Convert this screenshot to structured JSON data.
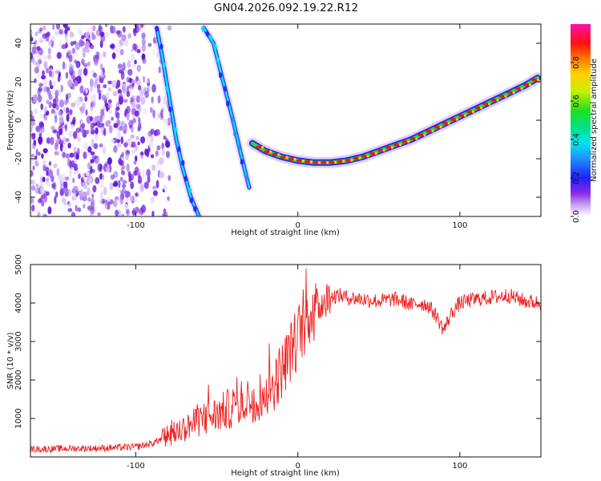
{
  "title": "GN04.2026.092.19.22.R12",
  "chart_data": [
    {
      "type": "heatmap",
      "name": "spectrogram",
      "xlabel": "Height of straight line (km)",
      "ylabel": "Frequency (Hz)",
      "xlim": [
        -165,
        150
      ],
      "ylim": [
        -50,
        50
      ],
      "x_ticks": [
        -100,
        0,
        100
      ],
      "y_ticks": [
        -40,
        -20,
        0,
        20,
        40
      ],
      "colorbar": {
        "label": "Normalized spectral amplitude",
        "range": [
          0,
          1
        ],
        "ticks": [
          0.0,
          0.2,
          0.4,
          0.6,
          0.8
        ],
        "tick_labels": [
          "0.0",
          "0.2",
          "0.4",
          "0.6",
          "0.8"
        ]
      },
      "traces": [
        {
          "name": "main-tone",
          "x": [
            -28,
            -20,
            -10,
            0,
            10,
            20,
            30,
            40,
            50,
            60,
            70,
            80,
            90,
            100,
            110,
            120,
            130,
            140,
            148
          ],
          "y": [
            -12,
            -16,
            -19,
            -21,
            -22,
            -22,
            -21,
            -19,
            -16,
            -13,
            -10,
            -6,
            -2,
            2,
            6,
            10,
            14,
            18,
            22
          ],
          "amplitude": 0.95
        },
        {
          "name": "aliased-trace-1",
          "x": [
            -58,
            -52,
            -46,
            -40,
            -35,
            -30
          ],
          "y": [
            48,
            40,
            20,
            0,
            -18,
            -35
          ],
          "amplitude": 0.35
        },
        {
          "name": "aliased-trace-2",
          "x": [
            -87,
            -83,
            -79,
            -75,
            -71,
            -66,
            -61
          ],
          "y": [
            48,
            30,
            10,
            -10,
            -25,
            -40,
            -50
          ],
          "amplitude": 0.35
        }
      ],
      "noise_region_x": [
        -165,
        -85
      ]
    },
    {
      "type": "line",
      "name": "snr",
      "xlabel": "Height of straight line (km)",
      "ylabel": "SNR (10 * v/v)",
      "xlim": [
        -165,
        150
      ],
      "ylim": [
        0,
        5000
      ],
      "x_ticks": [
        -100,
        0,
        100
      ],
      "y_ticks": [
        1000,
        2000,
        3000,
        4000,
        5000
      ],
      "series": [
        {
          "name": "SNR",
          "color": "#ee2020",
          "x": [
            -165,
            -140,
            -120,
            -100,
            -90,
            -80,
            -70,
            -60,
            -50,
            -40,
            -30,
            -20,
            -15,
            -10,
            -5,
            0,
            3,
            6,
            10,
            15,
            20,
            25,
            30,
            40,
            50,
            60,
            65,
            70,
            75,
            80,
            85,
            90,
            95,
            100,
            110,
            120,
            130,
            140,
            150
          ],
          "y": [
            200,
            220,
            230,
            260,
            350,
            550,
            750,
            950,
            1100,
            1300,
            1500,
            1650,
            1900,
            2250,
            2700,
            3100,
            3450,
            3650,
            3850,
            4000,
            4150,
            4200,
            4150,
            4100,
            4050,
            4100,
            4050,
            3950,
            4000,
            3950,
            3700,
            3300,
            3750,
            4000,
            4100,
            4150,
            4200,
            4050,
            4000
          ]
        }
      ]
    }
  ],
  "colors": {
    "line": "#ee2020",
    "axis": "#111111",
    "spectrum_hot": "#e8181c",
    "spectrum_noise": "#7a22e0"
  }
}
